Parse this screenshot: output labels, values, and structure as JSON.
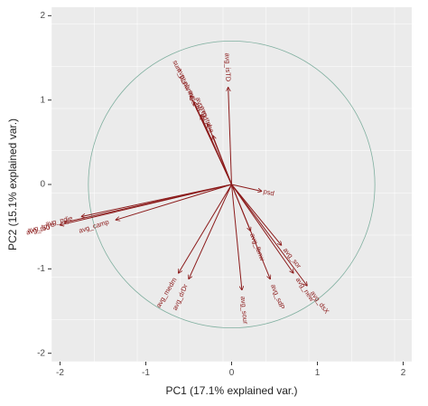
{
  "chart_data": {
    "type": "scatter",
    "title": "",
    "xlabel": "PC1 (17.1% explained var.)",
    "ylabel": "PC2 (15.1% explained var.)",
    "xlim": [
      -2.1,
      2.1
    ],
    "ylim": [
      -2.1,
      2.1
    ],
    "xticks": [
      -2,
      -1,
      0,
      1,
      2
    ],
    "yticks": [
      -2,
      -1,
      0,
      1,
      2
    ],
    "grid": true,
    "circle_radius": 1.67,
    "colors": {
      "vector": "#8b1a1a",
      "circle": "#7faf9f",
      "panel": "#ebebeb",
      "grid": "#ffffff"
    },
    "vectors": [
      {
        "label": "avg_isTD",
        "x": -0.04,
        "y": 1.15
      },
      {
        "label": "sum_pbnw",
        "x": -0.48,
        "y": 1.05
      },
      {
        "label": "avg_pbnw",
        "x": -0.44,
        "y": 0.98
      },
      {
        "label": "avg_ttd",
        "x": -0.36,
        "y": 0.82
      },
      {
        "label": "avg_tpd",
        "x": -0.28,
        "y": 0.72
      },
      {
        "label": "avg_tphe",
        "x": -0.22,
        "y": 0.58
      },
      {
        "label": "psd",
        "x": 0.35,
        "y": -0.08
      },
      {
        "label": "avg_camp",
        "x": -1.35,
        "y": -0.42
      },
      {
        "label": "avg_pdie",
        "x": -1.75,
        "y": -0.38
      },
      {
        "label": "avg_tpye",
        "x": -1.95,
        "y": -0.45
      },
      {
        "label": "avg_tbu",
        "x": -2.0,
        "y": -0.48
      },
      {
        "label": "avg_medm",
        "x": -0.62,
        "y": -1.05
      },
      {
        "label": "avg_drDr",
        "x": -0.5,
        "y": -1.12
      },
      {
        "label": "avg_sour",
        "x": 0.12,
        "y": -1.25
      },
      {
        "label": "avg_sdP",
        "x": 0.45,
        "y": -1.12
      },
      {
        "label": "avg_new",
        "x": 0.72,
        "y": -1.05
      },
      {
        "label": "avg_dsX",
        "x": 0.88,
        "y": -1.2
      },
      {
        "label": "avg_sor",
        "x": 0.58,
        "y": -0.72
      },
      {
        "label": "avg_fbnw",
        "x": 0.22,
        "y": -0.55
      }
    ]
  }
}
